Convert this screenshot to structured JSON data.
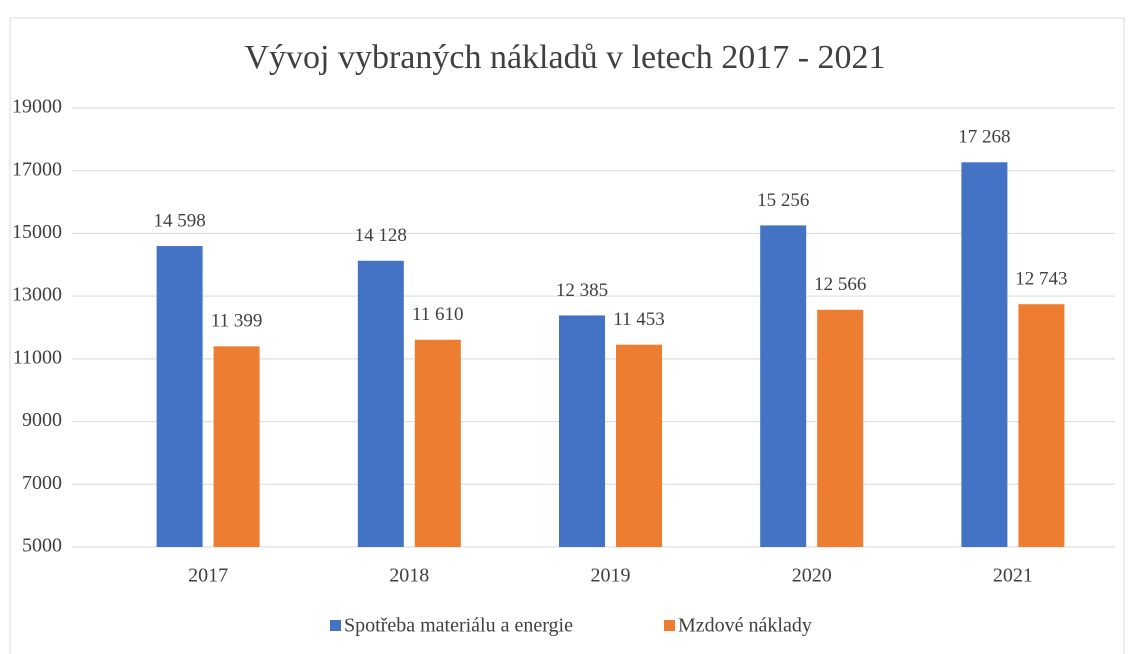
{
  "chart_data": {
    "type": "bar",
    "title": "Vývoj vybraných nákladů v letech 2017 - 2021",
    "categories": [
      "2017",
      "2018",
      "2019",
      "2020",
      "2021"
    ],
    "series": [
      {
        "name": "Spotřeba materiálu a energie",
        "color": "#4472c4",
        "values": [
          14598,
          14128,
          12385,
          15256,
          17268
        ],
        "value_labels": [
          "14 598",
          "14 128",
          "12 385",
          "15 256",
          "17 268"
        ]
      },
      {
        "name": "Mzdové náklady",
        "color": "#ed7d31",
        "values": [
          11399,
          11610,
          11453,
          12566,
          12743
        ],
        "value_labels": [
          "11 399",
          "11 610",
          "11 453",
          "12 566",
          "12 743"
        ]
      }
    ],
    "ylim": [
      5000,
      19000
    ],
    "yticks": [
      5000,
      7000,
      9000,
      11000,
      13000,
      15000,
      17000,
      19000
    ],
    "grid": true,
    "legend": "bottom"
  }
}
